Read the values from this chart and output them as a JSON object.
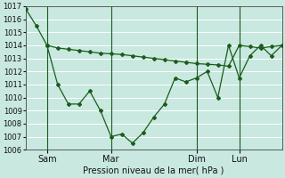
{
  "xlabel": "Pression niveau de la mer( hPa )",
  "ylim": [
    1006,
    1017
  ],
  "yticks": [
    1006,
    1007,
    1008,
    1009,
    1010,
    1011,
    1012,
    1013,
    1014,
    1015,
    1016,
    1017
  ],
  "bg_color": "#c8e8e0",
  "grid_color": "#ffffff",
  "line_color": "#1a5c1a",
  "xtick_labels": [
    "Sam",
    "Mar",
    "Dim",
    "Lun"
  ],
  "xtick_positions": [
    6,
    24,
    48,
    60
  ],
  "xlim": [
    0,
    72
  ],
  "vline_color": "#2a6a2a",
  "line1_x": [
    0,
    3,
    6,
    9,
    12,
    15,
    18,
    21,
    24,
    27,
    30,
    33,
    36,
    39,
    42,
    45,
    48,
    51,
    54,
    57,
    60,
    63,
    66,
    69,
    72
  ],
  "line1_y": [
    1016.8,
    1015.5,
    1014.0,
    1013.8,
    1013.7,
    1013.6,
    1013.5,
    1013.4,
    1013.35,
    1013.3,
    1013.2,
    1013.1,
    1013.0,
    1012.9,
    1012.8,
    1012.7,
    1012.6,
    1012.55,
    1012.5,
    1012.4,
    1014.0,
    1013.9,
    1013.8,
    1013.9,
    1014.0
  ],
  "line2_x": [
    6,
    9,
    12,
    15,
    18,
    21,
    24,
    27,
    30,
    33,
    36,
    39,
    42,
    45,
    48,
    51,
    54,
    57,
    60,
    63,
    66,
    69,
    72
  ],
  "line2_y": [
    1014.0,
    1011.0,
    1009.5,
    1009.5,
    1010.5,
    1009.0,
    1007.0,
    1007.2,
    1006.5,
    1007.3,
    1008.5,
    1009.5,
    1011.5,
    1011.2,
    1011.5,
    1012.0,
    1010.0,
    1014.0,
    1011.5,
    1013.2,
    1014.0,
    1013.2,
    1014.0
  ],
  "vline_positions": [
    6,
    24,
    48,
    60
  ]
}
